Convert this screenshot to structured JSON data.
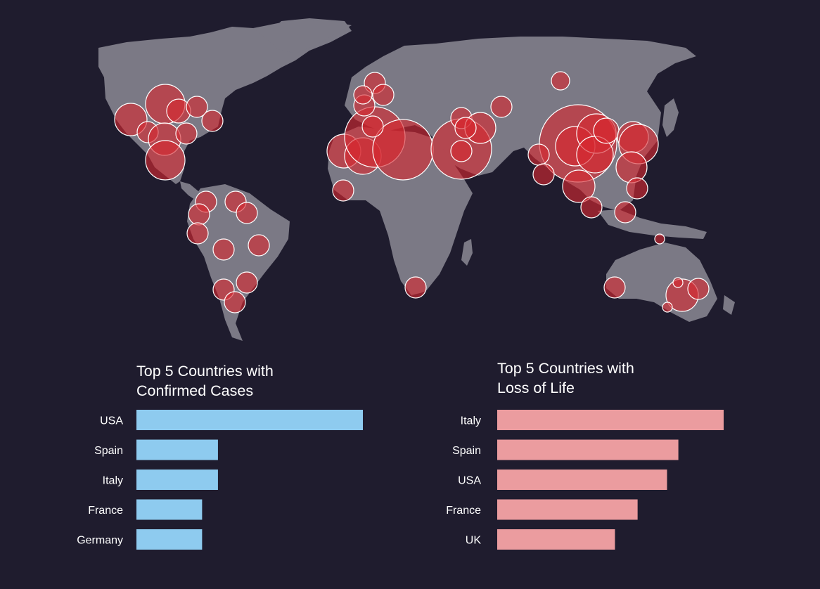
{
  "colors": {
    "background": "#1f1c2e",
    "land": "#7b7985",
    "bubble": "#d62830",
    "cases_bar": "#8ecbef",
    "deaths_bar": "#eb9c9f"
  },
  "chart_data": [
    {
      "type": "bar",
      "orientation": "horizontal",
      "title": "Top 5 Countries with Confirmed Cases",
      "title_lines": [
        "Top 5 Countries with",
        "Confirmed Cases"
      ],
      "categories": [
        "USA",
        "Spain",
        "Italy",
        "France",
        "Germany"
      ],
      "values": [
        100,
        36,
        36,
        29,
        29
      ],
      "axis": "none",
      "grid": false,
      "legend": "none"
    },
    {
      "type": "bar",
      "orientation": "horizontal",
      "title": "Top 5 Countries with Loss of Life",
      "title_lines": [
        "Top 5 Countries with",
        "Loss of Life"
      ],
      "categories": [
        "Italy",
        "Spain",
        "USA",
        "France",
        "UK"
      ],
      "values": [
        100,
        80,
        75,
        62,
        52
      ],
      "axis": "none",
      "grid": false,
      "legend": "none"
    }
  ],
  "map": {
    "bubble_color": "#d62830",
    "bubble_count": 67
  }
}
